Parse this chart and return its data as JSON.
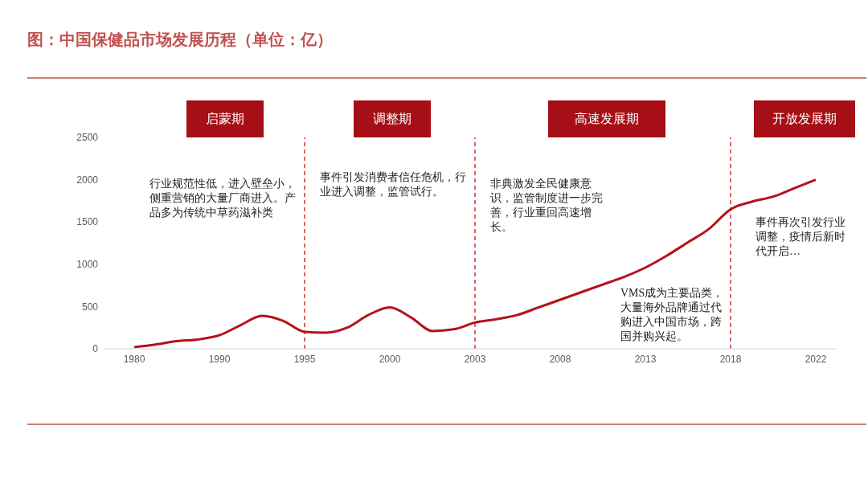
{
  "chart_data": {
    "type": "line",
    "title": "图：中国保健品市场发展历程（单位：亿）",
    "color": "#b5121b",
    "marker": "none",
    "line_style": "solid",
    "categories": [
      "1980",
      null,
      null,
      null,
      "1990",
      null,
      null,
      null,
      "1995",
      null,
      null,
      null,
      "2000",
      null,
      null,
      null,
      "2003",
      null,
      null,
      null,
      "2008",
      null,
      null,
      null,
      "2013",
      null,
      null,
      null,
      "2018",
      null,
      null,
      null,
      "2022"
    ],
    "values": [
      20,
      50,
      90,
      110,
      160,
      280,
      390,
      330,
      200,
      190,
      250,
      400,
      490,
      370,
      210,
      230,
      310,
      350,
      400,
      490,
      580,
      670,
      760,
      850,
      960,
      1100,
      1260,
      1420,
      1650,
      1740,
      1800,
      1900,
      2000
    ],
    "ylim": [
      0,
      2500
    ],
    "yticks": [
      0,
      500,
      1000,
      1500,
      2000,
      2500
    ],
    "ref_lines": [
      {
        "axis": "x",
        "value": "1995",
        "color": "#c00000",
        "line_style": "dashed"
      },
      {
        "axis": "x",
        "value": "2003",
        "color": "#c00000",
        "line_style": "dashed"
      },
      {
        "axis": "x",
        "value": "2018",
        "color": "#c00000",
        "line_style": "dashed"
      }
    ],
    "annotations": [
      "启蒙期",
      "调整期",
      "高速发展期",
      "开放发展期",
      "行业规范性低，进入壁垒小，侧重营销的大量厂商进入。产品多为传统中草药滋补类",
      "事件引发消费者信任危机，行业进入调整，监管试行。",
      "非典激发全民健康意识，监管制度进一步完善，行业重回高速增长。",
      "VMS成为主要品类，大量海外品牌通过代购进入中国市场，跨国并购兴起。",
      "事件再次引发行业调整，疫情后新时代开启…"
    ]
  }
}
